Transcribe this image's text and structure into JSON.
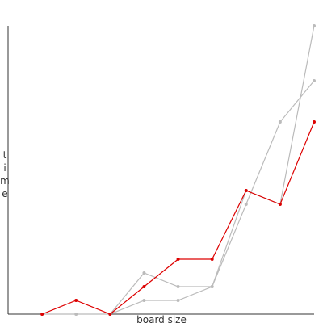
{
  "chart_data": {
    "type": "line",
    "xlabel": "board size",
    "ylabel": "time",
    "x": [
      1,
      2,
      3,
      4,
      5,
      6,
      7,
      8,
      9
    ],
    "xlim": [
      0,
      9
    ],
    "ylim": [
      0,
      21
    ],
    "series": [
      {
        "color": "#bbbbbb",
        "values": [
          0,
          0,
          0,
          1,
          1,
          2,
          8,
          14,
          17
        ]
      },
      {
        "color": "#bbbbbb",
        "values": [
          null,
          null,
          0,
          3,
          2,
          2,
          9,
          8,
          21
        ]
      },
      {
        "color": "#dd0000",
        "values": [
          0,
          1,
          0,
          2,
          4,
          4,
          9,
          8,
          14
        ]
      }
    ]
  }
}
